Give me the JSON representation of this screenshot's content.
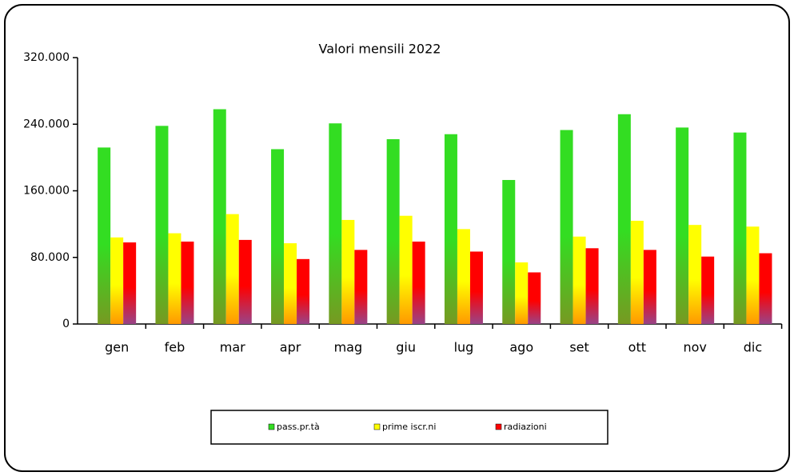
{
  "chart_data": {
    "type": "bar",
    "title": "Valori mensili 2022",
    "categories": [
      "gen",
      "feb",
      "mar",
      "apr",
      "mag",
      "giu",
      "lug",
      "ago",
      "set",
      "ott",
      "nov",
      "dic"
    ],
    "series": [
      {
        "name": "pass.pr.tà",
        "color": "#33dd22",
        "values": [
          212000,
          238000,
          258000,
          210000,
          241000,
          222000,
          228000,
          173000,
          233000,
          252000,
          236000,
          230000
        ]
      },
      {
        "name": "prime iscr.ni",
        "color": "#ffff00",
        "values": [
          104000,
          109000,
          132000,
          97000,
          125000,
          130000,
          114000,
          74000,
          105000,
          124000,
          119000,
          117000
        ]
      },
      {
        "name": "radiazioni",
        "color": "#ff0000",
        "values": [
          98000,
          99000,
          101000,
          78000,
          89000,
          99000,
          87000,
          62000,
          91000,
          89000,
          81000,
          85000
        ]
      }
    ],
    "ylim": [
      0,
      320000
    ],
    "yticks": [
      0,
      {
        "value": 80000,
        "label": "80.000"
      },
      {
        "value": 160000,
        "label": "160.000"
      },
      {
        "value": 240000,
        "label": "240.000"
      },
      {
        "value": 320000,
        "label": "320.000"
      }
    ],
    "legend": "bottom"
  }
}
